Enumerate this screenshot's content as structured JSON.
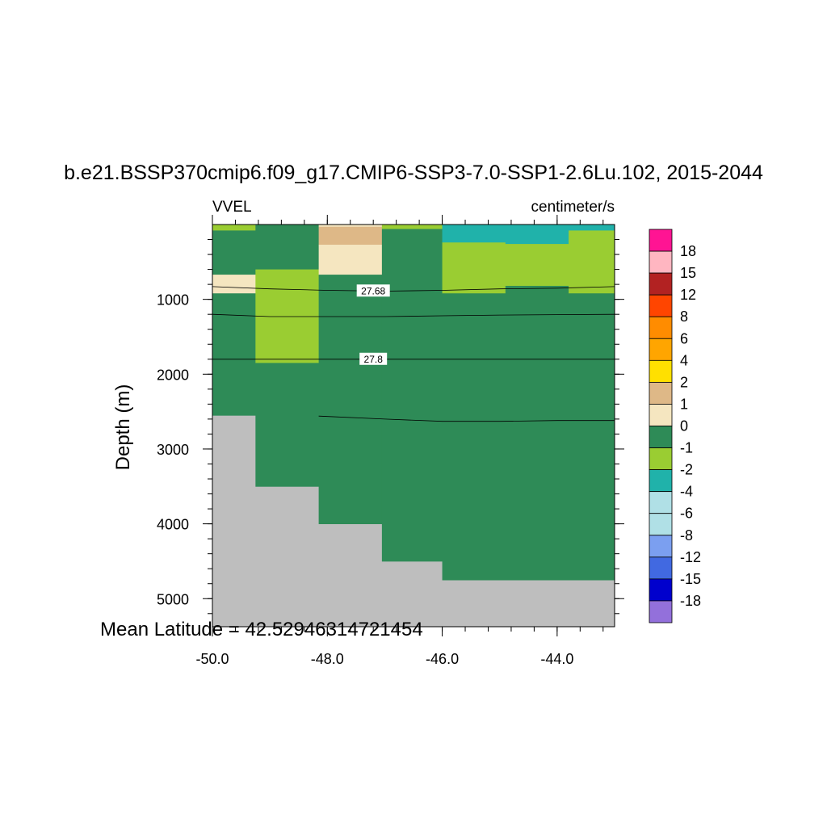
{
  "chart_data": {
    "type": "heatmap",
    "title": "b.e21.BSSP370cmip6.f09_g17.CMIP6-SSP3-7.0-SSP1-2.6Lu.102, 2015-2044",
    "left_subtitle": "VVEL",
    "right_subtitle": "centimeter/s",
    "ylabel": "Depth (m)",
    "xlabel": "",
    "footer": "Mean Latitude = 42.52946314721454",
    "xlim": [
      -50.0,
      -43.0
    ],
    "ylim": [
      5375,
      0
    ],
    "y_reversed": true,
    "x_ticks": [
      "-50.0",
      "-48.0",
      "-46.0",
      "-44.0"
    ],
    "y_ticks": [
      "1000",
      "2000",
      "3000",
      "4000",
      "5000"
    ],
    "colorbar": {
      "labels": [
        "18",
        "15",
        "12",
        "8",
        "6",
        "4",
        "2",
        "1",
        "0",
        "-1",
        "-2",
        "-4",
        "-6",
        "-8",
        "-12",
        "-15",
        "-18"
      ],
      "colors": [
        "#FF1493",
        "#FFB6C1",
        "#B22222",
        "#FF4500",
        "#FF8C00",
        "#FFA500",
        "#FFE000",
        "#DEB887",
        "#F5E6C0",
        "#2E8B57",
        "#9ACD32",
        "#20B2AA",
        "#B0E0E6",
        "#B0E0E6",
        "#7B9FF0",
        "#4169E1",
        "#0000CD",
        "#9370DB"
      ]
    },
    "columns": [
      {
        "x0": -50.0,
        "x1": -49.25,
        "seafloor": 2550,
        "cells": [
          {
            "top": 0,
            "bottom": 80,
            "value": "-1"
          },
          {
            "top": 80,
            "bottom": 670,
            "value": "0"
          },
          {
            "top": 670,
            "bottom": 920,
            "value": "1"
          },
          {
            "top": 920,
            "bottom": 2550,
            "value": "0"
          }
        ]
      },
      {
        "x0": -49.25,
        "x1": -48.15,
        "seafloor": 3500,
        "cells": [
          {
            "top": 0,
            "bottom": 30,
            "value": "0"
          },
          {
            "top": 30,
            "bottom": 600,
            "value": "0"
          },
          {
            "top": 600,
            "bottom": 1850,
            "value": "-1"
          },
          {
            "top": 1850,
            "bottom": 3500,
            "value": "0"
          }
        ]
      },
      {
        "x0": -48.15,
        "x1": -47.05,
        "seafloor": 4000,
        "cells": [
          {
            "top": 0,
            "bottom": 30,
            "value": "1"
          },
          {
            "top": 30,
            "bottom": 270,
            "value": "2"
          },
          {
            "top": 270,
            "bottom": 670,
            "value": "1"
          },
          {
            "top": 670,
            "bottom": 4000,
            "value": "0"
          }
        ]
      },
      {
        "x0": -47.05,
        "x1": -46.0,
        "seafloor": 4500,
        "cells": [
          {
            "top": 0,
            "bottom": 60,
            "value": "-1"
          },
          {
            "top": 60,
            "bottom": 4500,
            "value": "0"
          }
        ]
      },
      {
        "x0": -46.0,
        "x1": -44.9,
        "seafloor": 4750,
        "cells": [
          {
            "top": 0,
            "bottom": 240,
            "value": "-2"
          },
          {
            "top": 240,
            "bottom": 920,
            "value": "-1"
          },
          {
            "top": 920,
            "bottom": 4750,
            "value": "0"
          }
        ]
      },
      {
        "x0": -44.9,
        "x1": -43.8,
        "seafloor": 4750,
        "cells": [
          {
            "top": 0,
            "bottom": 260,
            "value": "-2"
          },
          {
            "top": 260,
            "bottom": 820,
            "value": "-1"
          },
          {
            "top": 820,
            "bottom": 4750,
            "value": "0"
          }
        ]
      },
      {
        "x0": -43.8,
        "x1": -43.0,
        "seafloor": 4750,
        "cells": [
          {
            "top": 0,
            "bottom": 80,
            "value": "-2"
          },
          {
            "top": 80,
            "bottom": 920,
            "value": "-1"
          },
          {
            "top": 920,
            "bottom": 4750,
            "value": "0"
          }
        ]
      }
    ],
    "contours": [
      {
        "label": "27.68",
        "label_x": -47.2,
        "points": [
          [
            -50.0,
            830
          ],
          [
            -49.0,
            860
          ],
          [
            -48.0,
            880
          ],
          [
            -47.0,
            890
          ],
          [
            -46.0,
            880
          ],
          [
            -45.0,
            860
          ],
          [
            -44.0,
            850
          ],
          [
            -43.0,
            830
          ]
        ]
      },
      {
        "label": "",
        "label_x": null,
        "points": [
          [
            -50.0,
            1200
          ],
          [
            -49.0,
            1230
          ],
          [
            -48.0,
            1230
          ],
          [
            -47.0,
            1230
          ],
          [
            -46.0,
            1220
          ],
          [
            -45.0,
            1210
          ],
          [
            -44.0,
            1205
          ],
          [
            -43.0,
            1200
          ]
        ]
      },
      {
        "label": "27.8",
        "label_x": -47.2,
        "points": [
          [
            -50.0,
            1800
          ],
          [
            -49.0,
            1800
          ],
          [
            -48.0,
            1800
          ],
          [
            -47.0,
            1800
          ],
          [
            -46.0,
            1800
          ],
          [
            -45.0,
            1800
          ],
          [
            -44.0,
            1800
          ],
          [
            -43.0,
            1800
          ]
        ]
      },
      {
        "label": "",
        "label_x": null,
        "points": [
          [
            -48.15,
            2560
          ],
          [
            -47.0,
            2600
          ],
          [
            -46.0,
            2630
          ],
          [
            -45.0,
            2630
          ],
          [
            -44.0,
            2620
          ],
          [
            -43.0,
            2620
          ]
        ]
      }
    ],
    "land_color": "#BEBEBE",
    "grid": false
  }
}
